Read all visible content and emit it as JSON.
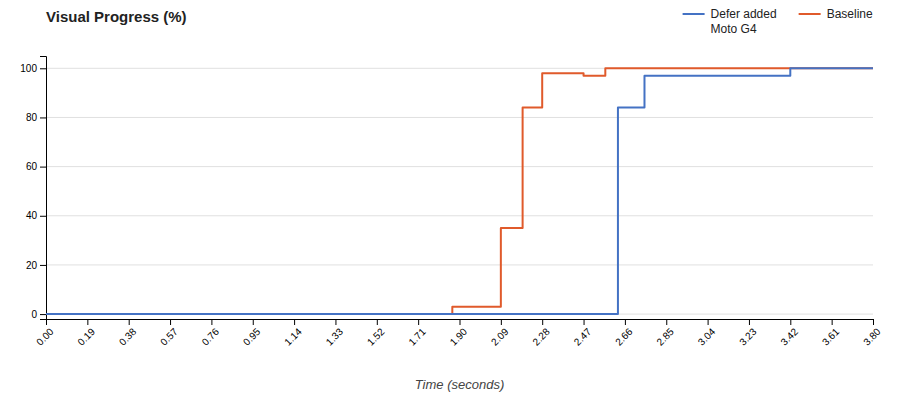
{
  "chart_data": {
    "type": "line",
    "title": "Visual Progress (%)",
    "x_label": "Time (seconds)",
    "xlim": [
      0.0,
      3.8
    ],
    "ylim": [
      -2,
      105
    ],
    "xticks": [
      {
        "value": 0.0,
        "label": "0.00"
      },
      0.19,
      0.38,
      0.57,
      0.76,
      0.95,
      1.14,
      1.33,
      1.52,
      1.71,
      {
        "value": 1.9,
        "label": "1.90"
      },
      2.09,
      2.28,
      2.47,
      2.66,
      2.85,
      3.04,
      3.23,
      3.42,
      3.61,
      {
        "value": 3.8,
        "label": "3.80"
      }
    ],
    "yticks": [
      0,
      20,
      40,
      60,
      80,
      100
    ],
    "grid": true,
    "legend": "upper right",
    "series": [
      {
        "name": "Baseline",
        "color": "#E05A2B",
        "x": [
          0.0,
          1.867,
          1.867,
          2.09,
          2.09,
          2.19,
          2.19,
          2.28,
          2.28,
          2.47,
          2.47,
          2.57,
          2.57,
          3.42,
          3.42,
          3.8
        ],
        "values": [
          0,
          0,
          3,
          3,
          35,
          35,
          84,
          84,
          98,
          98,
          97,
          97,
          100,
          100,
          100,
          100
        ]
      },
      {
        "name": "Defer added\nMoto G4",
        "color": "#4472C4",
        "x": [
          0.0,
          2.628,
          2.628,
          2.75,
          2.75,
          3.42,
          3.42,
          3.8
        ],
        "values": [
          0,
          0,
          84,
          84,
          97,
          97,
          100,
          100
        ]
      }
    ]
  }
}
